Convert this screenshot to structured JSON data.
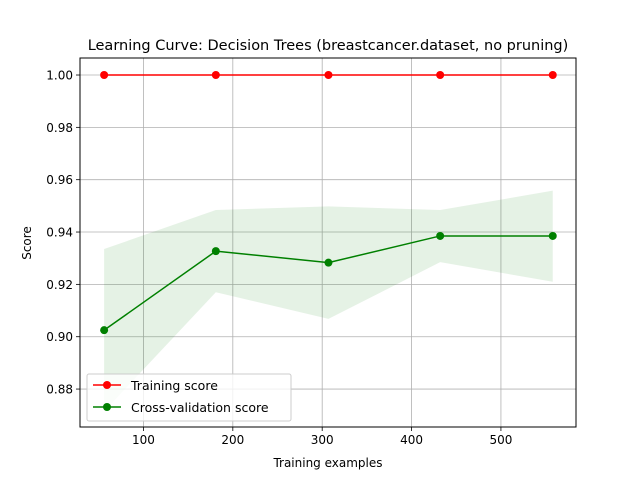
{
  "chart_data": {
    "type": "line",
    "title": "Learning Curve: Decision Trees (breastcancer.dataset, no pruning)",
    "xlabel": "Training examples",
    "ylabel": "Score",
    "xlim": [
      29,
      584
    ],
    "ylim": [
      0.8655,
      1.0065
    ],
    "xticks": [
      100,
      200,
      300,
      400,
      500
    ],
    "xtick_labels": [
      "100",
      "200",
      "300",
      "400",
      "500"
    ],
    "yticks": [
      0.88,
      0.9,
      0.92,
      0.94,
      0.96,
      0.98,
      1.0
    ],
    "ytick_labels": [
      "0.88",
      "0.90",
      "0.92",
      "0.94",
      "0.96",
      "0.98",
      "1.00"
    ],
    "grid": true,
    "legend_position": "lower-left",
    "x": [
      56,
      181,
      307,
      432,
      558
    ],
    "series": [
      {
        "name": "Training score",
        "color": "#ff0000",
        "values": [
          1.0,
          1.0,
          1.0,
          1.0,
          1.0
        ],
        "band_lower": [
          1.0,
          1.0,
          1.0,
          1.0,
          1.0
        ],
        "band_upper": [
          1.0,
          1.0,
          1.0,
          1.0,
          1.0
        ],
        "band_color": "#ff0000"
      },
      {
        "name": "Cross-validation score",
        "color": "#008000",
        "values": [
          0.9025,
          0.9327,
          0.9283,
          0.9385,
          0.9385
        ],
        "band_lower": [
          0.8715,
          0.917,
          0.9068,
          0.9285,
          0.921
        ],
        "band_upper": [
          0.9335,
          0.9484,
          0.9498,
          0.9484,
          0.9558
        ],
        "band_color": "#008000"
      }
    ]
  }
}
